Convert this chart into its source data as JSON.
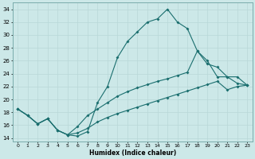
{
  "xlabel": "Humidex (Indice chaleur)",
  "ylabel": "",
  "background_color": "#cce8e8",
  "grid_color": "#b0d0d0",
  "line_color": "#1a6e6e",
  "xlim": [
    -0.5,
    23.5
  ],
  "ylim": [
    13.5,
    35.0
  ],
  "yticks": [
    14,
    16,
    18,
    20,
    22,
    24,
    26,
    28,
    30,
    32,
    34
  ],
  "xticks": [
    0,
    1,
    2,
    3,
    4,
    5,
    6,
    7,
    8,
    9,
    10,
    11,
    12,
    13,
    14,
    15,
    16,
    17,
    18,
    19,
    20,
    21,
    22,
    23
  ],
  "curve1_x": [
    0,
    1,
    2,
    3,
    4,
    5,
    6,
    7,
    8,
    9,
    10,
    11,
    12,
    13,
    14,
    15,
    16,
    17,
    18,
    19,
    20,
    21,
    22,
    23
  ],
  "curve1_y": [
    18.5,
    17.5,
    16.2,
    17.0,
    15.2,
    14.5,
    14.3,
    15.0,
    19.5,
    22.0,
    26.5,
    29.0,
    30.5,
    32.0,
    32.5,
    34.0,
    32.0,
    31.0,
    27.5,
    26.0,
    23.5,
    23.5,
    22.5,
    22.2
  ],
  "curve2_x": [
    0,
    1,
    2,
    3,
    4,
    5,
    6,
    7,
    8,
    9,
    10,
    11,
    12,
    13,
    14,
    15,
    16,
    17,
    18,
    19,
    20,
    21,
    22,
    23
  ],
  "curve2_y": [
    18.5,
    17.5,
    16.2,
    17.0,
    15.2,
    14.5,
    15.8,
    17.5,
    18.5,
    19.5,
    20.5,
    21.2,
    21.8,
    22.3,
    22.8,
    23.2,
    23.7,
    24.2,
    27.5,
    25.5,
    25.0,
    23.5,
    23.5,
    22.2
  ],
  "curve3_x": [
    0,
    1,
    2,
    3,
    4,
    5,
    6,
    7,
    8,
    9,
    10,
    11,
    12,
    13,
    14,
    15,
    16,
    17,
    18,
    19,
    20,
    21,
    22,
    23
  ],
  "curve3_y": [
    18.5,
    17.5,
    16.2,
    17.0,
    15.2,
    14.5,
    14.8,
    15.5,
    16.5,
    17.2,
    17.8,
    18.3,
    18.8,
    19.3,
    19.8,
    20.3,
    20.8,
    21.3,
    21.8,
    22.3,
    22.8,
    21.5,
    22.0,
    22.2
  ]
}
